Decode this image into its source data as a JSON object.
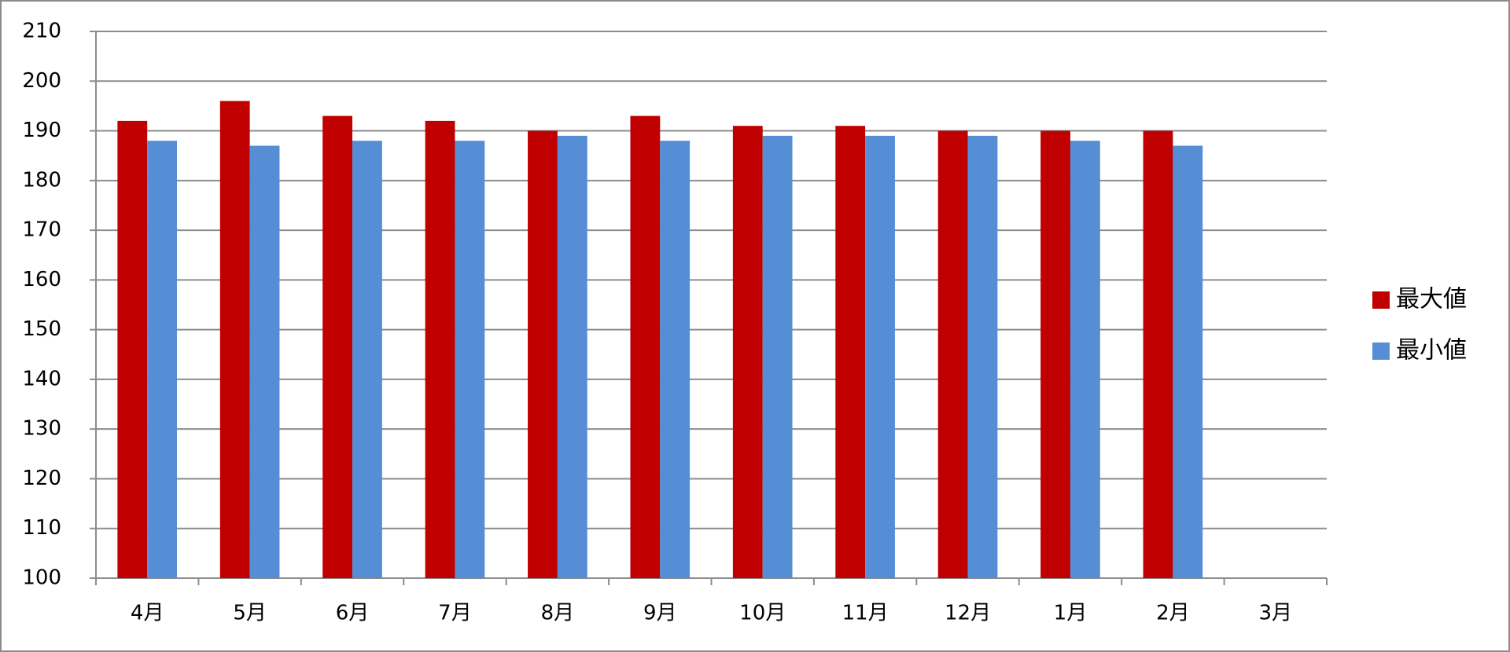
{
  "chart_data": {
    "type": "bar",
    "categories": [
      "4月",
      "5月",
      "6月",
      "7月",
      "8月",
      "9月",
      "10月",
      "11月",
      "12月",
      "1月",
      "2月",
      "3月"
    ],
    "series": [
      {
        "name": "最大値",
        "color": "#c00000",
        "values": [
          192,
          196,
          193,
          192,
          190,
          193,
          191,
          191,
          190,
          190,
          190,
          null
        ]
      },
      {
        "name": "最小値",
        "color": "#558ed5",
        "values": [
          188,
          187,
          188,
          188,
          189,
          188,
          189,
          189,
          189,
          188,
          187,
          null
        ]
      }
    ],
    "ylim": [
      100,
      210
    ],
    "yticks": [
      100,
      110,
      120,
      130,
      140,
      150,
      160,
      170,
      180,
      190,
      200,
      210
    ],
    "grid": true,
    "legend": "right"
  }
}
